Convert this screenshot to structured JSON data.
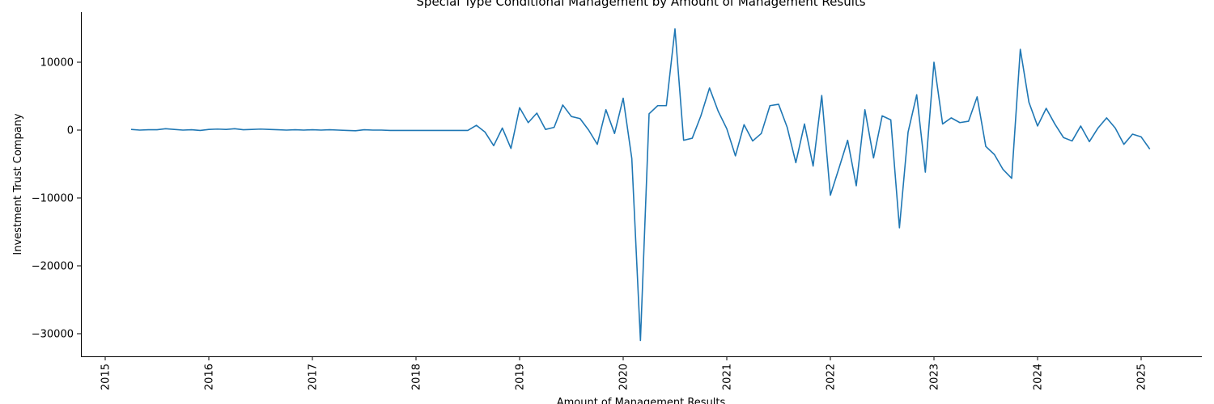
{
  "chart_data": {
    "type": "line",
    "title": "Special Type Conditional Management by Amount of Management Results",
    "xlabel": "Amount of Management Results",
    "ylabel": "Investment Trust Company",
    "x_ticks": [
      "2015",
      "2016",
      "2017",
      "2018",
      "2019",
      "2020",
      "2021",
      "2022",
      "2023",
      "2024",
      "2025"
    ],
    "y_ticks": [
      "−30000",
      "−20000",
      "−10000",
      "0",
      "10000"
    ],
    "y_tick_values": [
      -30000,
      -20000,
      -10000,
      0,
      10000
    ],
    "xlim": [
      "2014-12-01",
      "2025-07-01"
    ],
    "ylim": [
      -32000,
      17000
    ],
    "grid": false,
    "color": "#1f77b4",
    "series": [
      {
        "x": [
          "2015-04",
          "2015-05",
          "2015-06",
          "2015-07",
          "2015-08",
          "2015-09",
          "2015-10",
          "2015-11",
          "2015-12",
          "2016-01",
          "2016-02",
          "2016-03",
          "2016-04",
          "2016-05",
          "2016-06",
          "2016-07",
          "2016-08",
          "2016-09",
          "2016-10",
          "2016-11",
          "2016-12",
          "2017-01",
          "2017-02",
          "2017-03",
          "2017-04",
          "2017-05",
          "2017-06",
          "2017-07",
          "2017-08",
          "2017-09",
          "2017-10",
          "2017-11",
          "2017-12",
          "2018-01",
          "2018-02",
          "2018-03",
          "2018-04",
          "2018-05",
          "2018-06",
          "2018-07",
          "2018-08",
          "2018-09",
          "2018-10",
          "2018-11",
          "2018-12",
          "2019-01",
          "2019-02",
          "2019-03",
          "2019-04",
          "2019-05",
          "2019-06",
          "2019-07",
          "2019-08",
          "2019-09",
          "2019-10",
          "2019-11",
          "2019-12",
          "2020-01",
          "2020-02",
          "2020-03",
          "2020-04",
          "2020-05",
          "2020-06",
          "2020-07",
          "2020-08",
          "2020-09",
          "2020-10",
          "2020-11",
          "2020-12",
          "2021-01",
          "2021-02",
          "2021-03",
          "2021-04",
          "2021-05",
          "2021-06",
          "2021-07",
          "2021-08",
          "2021-09",
          "2021-10",
          "2021-11",
          "2021-12",
          "2022-01",
          "2022-02",
          "2022-03",
          "2022-04",
          "2022-05",
          "2022-06",
          "2022-07",
          "2022-08",
          "2022-09",
          "2022-10",
          "2022-11",
          "2022-12",
          "2023-01",
          "2023-02",
          "2023-03",
          "2023-04",
          "2023-05",
          "2023-06",
          "2023-07",
          "2023-08",
          "2023-09",
          "2023-10",
          "2023-11",
          "2023-12",
          "2024-01",
          "2024-02",
          "2024-03",
          "2024-04",
          "2024-05",
          "2024-06",
          "2024-07",
          "2024-08",
          "2024-09",
          "2024-10",
          "2024-11",
          "2024-12",
          "2025-01",
          "2025-02"
        ],
        "y": [
          100,
          0,
          50,
          50,
          200,
          100,
          0,
          50,
          -50,
          100,
          150,
          100,
          200,
          50,
          100,
          150,
          100,
          50,
          0,
          50,
          0,
          50,
          0,
          50,
          0,
          -50,
          -100,
          50,
          0,
          0,
          -50,
          -50,
          -50,
          -50,
          -50,
          -50,
          -50,
          -50,
          -50,
          -50,
          700,
          -300,
          -2300,
          300,
          -2700,
          3300,
          1100,
          2500,
          100,
          400,
          3700,
          2000,
          1700,
          0,
          -2100,
          3000,
          -500,
          4700,
          -4200,
          -31000,
          2400,
          3600,
          3600,
          14900,
          -1500,
          -1200,
          2100,
          6200,
          2800,
          200,
          -3800,
          800,
          -1600,
          -500,
          3600,
          3800,
          400,
          -4800,
          900,
          -5300,
          5100,
          -9600,
          -5600,
          -1500,
          -8200,
          3000,
          -4100,
          2100,
          1500,
          -14400,
          -300,
          5200,
          -6200,
          10000,
          900,
          1800,
          1100,
          1300,
          4900,
          -2400,
          -3600,
          -5800,
          -7100,
          11900,
          4100,
          600,
          3200,
          900,
          -1100,
          -1600,
          600,
          -1700,
          300,
          1800,
          300,
          -2100,
          -600,
          -1000,
          -2800
        ]
      }
    ]
  }
}
